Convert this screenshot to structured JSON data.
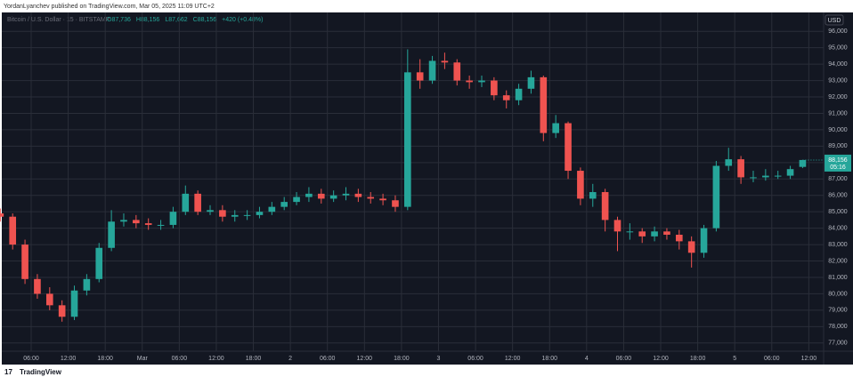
{
  "header": {
    "published": "YordanLyanchev published on TradingView.com, Mar 05, 2025 11:09 UTC+2"
  },
  "footer": {
    "brand": "TradingView"
  },
  "chart_data": {
    "type": "candlestick",
    "title": "Bitcoin / U.S. Dollar · 15 · BITSTAMP",
    "legend_values": [
      "O87,736",
      "H88,156",
      "L87,662",
      "C88,156",
      "+420 (+0.48%)"
    ],
    "currency": "USD",
    "last_price_label": "88,156",
    "countdown": "05:16",
    "up_color": "#26a69a",
    "down_color": "#ef5350",
    "grid": true,
    "x": [
      1,
      3,
      5,
      7,
      9,
      11,
      13,
      15,
      17,
      19,
      21,
      23,
      25,
      27,
      29,
      31,
      33,
      35,
      37,
      39,
      41,
      43,
      45,
      47,
      49,
      51,
      53,
      55,
      57,
      59,
      61,
      63,
      65,
      67,
      69,
      71,
      73,
      75,
      77,
      79,
      81,
      83,
      85,
      87,
      89,
      91,
      93,
      95,
      97,
      99,
      101,
      103,
      105,
      107,
      109,
      111,
      113,
      115,
      117,
      119,
      121,
      123,
      125,
      127,
      129,
      131
    ],
    "open": [
      84900,
      84700,
      83000,
      80900,
      80000,
      79300,
      78600,
      80200,
      80900,
      82800,
      84400,
      84500,
      84300,
      84200,
      84200,
      85000,
      86100,
      85000,
      85100,
      84700,
      84800,
      84800,
      85000,
      85300,
      85600,
      85900,
      86100,
      85800,
      86000,
      86100,
      85900,
      85800,
      85700,
      85300,
      93500,
      93000,
      94200,
      94100,
      93000,
      92900,
      93000,
      92100,
      91800,
      92500,
      93200,
      89800,
      90400,
      87500,
      85800,
      86200,
      84500,
      83800,
      83800,
      83500,
      83800,
      83600,
      83200,
      82500,
      84000,
      87800,
      88200,
      87100,
      87100,
      87200,
      87200,
      87736
    ],
    "high": [
      85200,
      84900,
      83300,
      81200,
      80400,
      79600,
      80500,
      81200,
      83100,
      85100,
      84900,
      84800,
      84600,
      84500,
      85300,
      86600,
      86300,
      85400,
      85400,
      85100,
      85100,
      85300,
      85600,
      85900,
      86200,
      86500,
      86400,
      86300,
      86500,
      86400,
      86200,
      86100,
      86000,
      94900,
      94300,
      94500,
      94700,
      94300,
      93300,
      93300,
      93200,
      92400,
      92800,
      93600,
      93300,
      90900,
      90500,
      87700,
      86700,
      86400,
      84700,
      84300,
      84000,
      84100,
      84000,
      83900,
      83500,
      84200,
      88100,
      88900,
      88400,
      87500,
      87600,
      87500,
      87800,
      88156
    ],
    "low": [
      84400,
      82700,
      80600,
      79700,
      79000,
      78300,
      78400,
      79900,
      80700,
      82600,
      84100,
      84000,
      83900,
      83900,
      84000,
      84800,
      84800,
      84800,
      84400,
      84400,
      84500,
      84600,
      84800,
      85100,
      85400,
      85600,
      85500,
      85600,
      85700,
      85600,
      85500,
      85400,
      85000,
      85100,
      92500,
      92800,
      93700,
      92700,
      92500,
      92600,
      91800,
      91300,
      91500,
      92200,
      89300,
      89500,
      87000,
      85400,
      85300,
      83800,
      82600,
      83300,
      83100,
      83200,
      83300,
      82700,
      81600,
      82200,
      83800,
      87500,
      86700,
      86800,
      86900,
      87000,
      87000,
      87662
    ],
    "close": [
      84700,
      83000,
      80900,
      80000,
      79300,
      78600,
      80200,
      80900,
      82800,
      84400,
      84500,
      84300,
      84200,
      84200,
      85000,
      86100,
      85000,
      85100,
      84700,
      84800,
      84800,
      85000,
      85300,
      85600,
      85900,
      86100,
      85800,
      86000,
      86100,
      85900,
      85800,
      85700,
      85300,
      93500,
      93000,
      94200,
      94100,
      93000,
      92900,
      93000,
      92100,
      91800,
      92500,
      93200,
      89800,
      90400,
      87500,
      85800,
      86200,
      84500,
      83800,
      83800,
      83500,
      83800,
      83600,
      83200,
      82500,
      84000,
      87800,
      88200,
      87100,
      87100,
      87200,
      87200,
      87600,
      88156
    ],
    "xlim": [
      0.95,
      134.4
    ],
    "xticks": [
      {
        "value": 6,
        "label": "06:00"
      },
      {
        "value": 12,
        "label": "12:00"
      },
      {
        "value": 18,
        "label": "18:00"
      },
      {
        "value": 24,
        "label": "Mar"
      },
      {
        "value": 30,
        "label": "06:00"
      },
      {
        "value": 36,
        "label": "12:00"
      },
      {
        "value": 42,
        "label": "18:00"
      },
      {
        "value": 48,
        "label": "2"
      },
      {
        "value": 54,
        "label": "06:00"
      },
      {
        "value": 60,
        "label": "12:00"
      },
      {
        "value": 66,
        "label": "18:00"
      },
      {
        "value": 72,
        "label": "3"
      },
      {
        "value": 78,
        "label": "06:00"
      },
      {
        "value": 84,
        "label": "12:00"
      },
      {
        "value": 90,
        "label": "18:00"
      },
      {
        "value": 96,
        "label": "4"
      },
      {
        "value": 102,
        "label": "06:00"
      },
      {
        "value": 108,
        "label": "12:00"
      },
      {
        "value": 114,
        "label": "18:00"
      },
      {
        "value": 120,
        "label": "5"
      },
      {
        "value": 126,
        "label": "06:00"
      },
      {
        "value": 132,
        "label": "12:00"
      }
    ],
    "ylim": [
      76500,
      97150
    ],
    "yticks": [
      {
        "value": 77000,
        "label": "77,000"
      },
      {
        "value": 78000,
        "label": "78,000"
      },
      {
        "value": 79000,
        "label": "79,000"
      },
      {
        "value": 80000,
        "label": "80,000"
      },
      {
        "value": 81000,
        "label": "81,000"
      },
      {
        "value": 82000,
        "label": "82,000"
      },
      {
        "value": 83000,
        "label": "83,000"
      },
      {
        "value": 84000,
        "label": "84,000"
      },
      {
        "value": 85000,
        "label": "85,000"
      },
      {
        "value": 86000,
        "label": "86,000"
      },
      {
        "value": 87000,
        "label": "87,000"
      },
      {
        "value": 88000,
        "label": "88,000"
      },
      {
        "value": 89000,
        "label": "89,000"
      },
      {
        "value": 90000,
        "label": "90,000"
      },
      {
        "value": 91000,
        "label": "91,000"
      },
      {
        "value": 92000,
        "label": "92,000"
      },
      {
        "value": 93000,
        "label": "93,000"
      },
      {
        "value": 94000,
        "label": "94,000"
      },
      {
        "value": 95000,
        "label": "95,000"
      },
      {
        "value": 96000,
        "label": "96,000"
      }
    ]
  }
}
